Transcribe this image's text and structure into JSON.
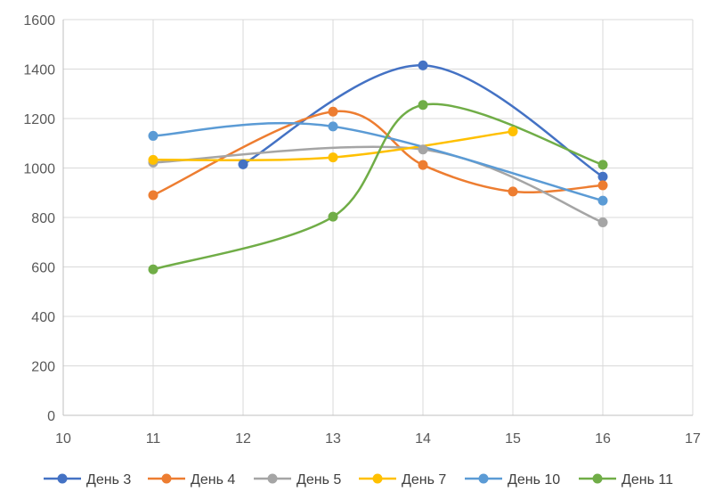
{
  "chart_data": {
    "type": "scatter",
    "title": "",
    "xlabel": "",
    "ylabel": "",
    "xlim": [
      10,
      17
    ],
    "ylim": [
      0,
      1600
    ],
    "xticks": [
      10,
      11,
      12,
      13,
      14,
      15,
      16,
      17
    ],
    "yticks": [
      0,
      200,
      400,
      600,
      800,
      1000,
      1200,
      1400,
      1600
    ],
    "grid": true,
    "smooth": true,
    "legend_position": "bottom",
    "series": [
      {
        "name": "День 3",
        "color": "#4472C4",
        "points": [
          [
            12,
            1015
          ],
          [
            14,
            1415
          ],
          [
            16,
            965
          ]
        ]
      },
      {
        "name": "День 4",
        "color": "#ED7D31",
        "points": [
          [
            11,
            890
          ],
          [
            13,
            1228
          ],
          [
            14,
            1012
          ],
          [
            15,
            905
          ],
          [
            16,
            930
          ]
        ]
      },
      {
        "name": "День 5",
        "color": "#A5A5A5",
        "points": [
          [
            11,
            1022
          ],
          [
            14,
            1075
          ],
          [
            16,
            780
          ]
        ]
      },
      {
        "name": "День 7",
        "color": "#FFC000",
        "points": [
          [
            11,
            1033
          ],
          [
            13,
            1043
          ],
          [
            15,
            1148
          ]
        ]
      },
      {
        "name": "День 10",
        "color": "#5B9BD5",
        "points": [
          [
            11,
            1130
          ],
          [
            13,
            1168
          ],
          [
            16,
            868
          ]
        ]
      },
      {
        "name": "День 11",
        "color": "#70AD47",
        "points": [
          [
            11,
            590
          ],
          [
            13,
            803
          ],
          [
            14,
            1255
          ],
          [
            16,
            1013
          ]
        ]
      }
    ]
  }
}
